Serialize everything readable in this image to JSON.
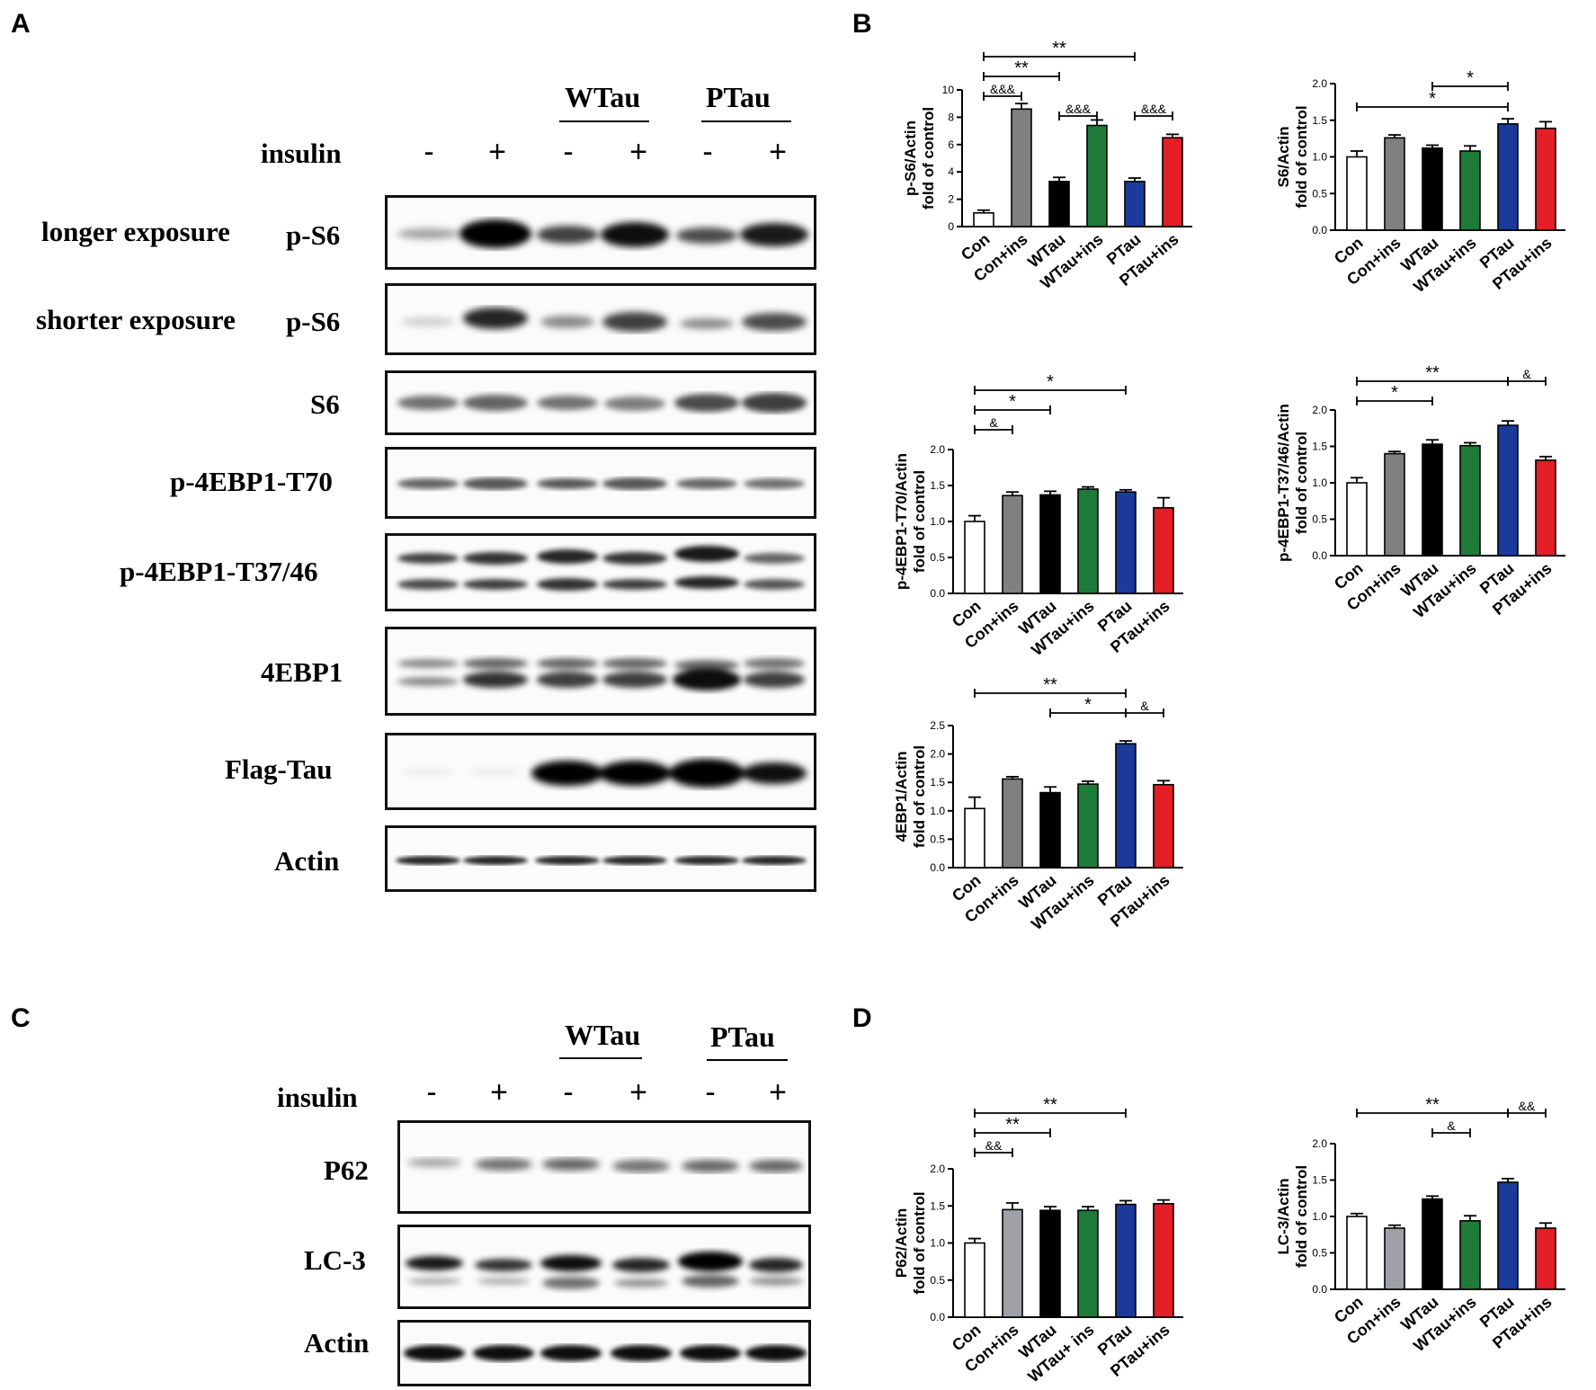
{
  "panels": {
    "A": "A",
    "B": "B",
    "C": "C",
    "D": "D"
  },
  "blotA": {
    "groups": [
      "WTau",
      "PTau"
    ],
    "insulin_label": "insulin",
    "insulin_signs": [
      "-",
      "+",
      "-",
      "+",
      "-",
      "+"
    ],
    "rows": [
      {
        "label1": "longer exposure",
        "label2": "p-S6"
      },
      {
        "label1": "shorter exposure",
        "label2": "p-S6"
      },
      {
        "label2": "S6"
      },
      {
        "label2": "p-4EBP1-T70"
      },
      {
        "label2": "p-4EBP1-T37/46"
      },
      {
        "label2": "4EBP1"
      },
      {
        "label2": "Flag-Tau"
      },
      {
        "label2": "Actin"
      }
    ]
  },
  "blotC": {
    "groups": [
      "WTau",
      "PTau"
    ],
    "insulin_label": "insulin",
    "insulin_signs": [
      "-",
      "+",
      "-",
      "+",
      "-",
      "+"
    ],
    "rows": [
      {
        "label2": "P62"
      },
      {
        "label2": "LC-3"
      },
      {
        "label2": "Actin"
      }
    ]
  },
  "colors": {
    "con": "#ffffff",
    "con_ins": "#808080",
    "wtau": "#000000",
    "wtau_ins": "#1e7b3a",
    "ptau": "#1a3a9c",
    "ptau_ins": "#e41e26",
    "con_ins_d": "#a0a0a8"
  },
  "chart_data": [
    {
      "type": "bar",
      "panel": "B",
      "ylabel": [
        "p-S6/Actin",
        "fold of control"
      ],
      "categories": [
        "Con",
        "Con+ins",
        "WTau",
        "WTau+ins",
        "PTau",
        "PTau+ins"
      ],
      "values": [
        1.0,
        8.6,
        3.3,
        7.4,
        3.3,
        6.5
      ],
      "errors": [
        0.2,
        0.4,
        0.3,
        0.4,
        0.25,
        0.25
      ],
      "ylim": [
        0,
        10
      ],
      "yticks": [
        "0",
        "2",
        "4",
        "6",
        "8",
        "10"
      ],
      "colors": [
        "#ffffff",
        "#808080",
        "#000000",
        "#1e7b3a",
        "#1a3a9c",
        "#e41e26"
      ],
      "annotations": [
        {
          "from": 0,
          "to": 4,
          "text": "**",
          "level": 0
        },
        {
          "from": 0,
          "to": 2,
          "text": "**",
          "level": 1
        },
        {
          "from": 0,
          "to": 1,
          "text": "&&&",
          "level": 2,
          "ticks": true
        },
        {
          "from": 2,
          "to": 3,
          "text": "&&&",
          "level": 3,
          "ticks": true
        },
        {
          "from": 4,
          "to": 5,
          "text": "&&&",
          "level": 3,
          "ticks": true
        }
      ]
    },
    {
      "type": "bar",
      "panel": "B",
      "ylabel": [
        "S6/Actin",
        "fold of control"
      ],
      "categories": [
        "Con",
        "Con+ins",
        "WTau",
        "WTau+ins",
        "PTau",
        "PTau+ins"
      ],
      "values": [
        1.0,
        1.26,
        1.12,
        1.08,
        1.45,
        1.39
      ],
      "errors": [
        0.08,
        0.04,
        0.04,
        0.07,
        0.07,
        0.09
      ],
      "ylim": [
        0,
        2.0
      ],
      "yticks": [
        "0.0",
        "0.5",
        "1.0",
        "1.5",
        "2.0"
      ],
      "colors": [
        "#ffffff",
        "#808080",
        "#000000",
        "#1e7b3a",
        "#1a3a9c",
        "#e41e26"
      ],
      "annotations": [
        {
          "from": 2,
          "to": 4,
          "text": "*",
          "level": 0,
          "ticks": true
        },
        {
          "from": 0,
          "to": 4,
          "text": "*",
          "level": 1,
          "ticks": true
        }
      ]
    },
    {
      "type": "bar",
      "panel": "B",
      "ylabel": [
        "p-4EBP1-T70/Actin",
        "fold of control"
      ],
      "categories": [
        "Con",
        "Con+ins",
        "WTau",
        "WTau+ins",
        "PTau",
        "PTau+ins"
      ],
      "values": [
        1.0,
        1.36,
        1.37,
        1.45,
        1.41,
        1.19
      ],
      "errors": [
        0.08,
        0.05,
        0.05,
        0.03,
        0.03,
        0.14
      ],
      "ylim": [
        0,
        2.0
      ],
      "yticks": [
        "0.0",
        "0.5",
        "1.0",
        "1.5",
        "2.0"
      ],
      "colors": [
        "#ffffff",
        "#808080",
        "#000000",
        "#1e7b3a",
        "#1a3a9c",
        "#e41e26"
      ],
      "annotations": [
        {
          "from": 0,
          "to": 4,
          "text": "*",
          "level": 0,
          "ticks": true
        },
        {
          "from": 0,
          "to": 2,
          "text": "*",
          "level": 1,
          "ticks": true
        },
        {
          "from": 0,
          "to": 1,
          "text": "&",
          "level": 2,
          "ticks": true
        }
      ]
    },
    {
      "type": "bar",
      "panel": "B",
      "ylabel": [
        "p-4EBP1-T37/46/Actin",
        "fold of control"
      ],
      "categories": [
        "Con",
        "Con+ins",
        "WTau",
        "WTau+ins",
        "PTau",
        "PTau+ins"
      ],
      "values": [
        1.0,
        1.4,
        1.53,
        1.51,
        1.79,
        1.31
      ],
      "errors": [
        0.07,
        0.03,
        0.06,
        0.04,
        0.06,
        0.05
      ],
      "ylim": [
        0,
        2.0
      ],
      "yticks": [
        "0.0",
        "0.5",
        "1.0",
        "1.5",
        "2.0"
      ],
      "colors": [
        "#ffffff",
        "#808080",
        "#000000",
        "#1e7b3a",
        "#1a3a9c",
        "#e41e26"
      ],
      "annotations": [
        {
          "from": 0,
          "to": 4,
          "text": "**",
          "level": 0,
          "ticks": true
        },
        {
          "from": 4,
          "to": 5,
          "text": "&",
          "level": 0,
          "ticks": true
        },
        {
          "from": 0,
          "to": 2,
          "text": "*",
          "level": 1,
          "ticks": true
        }
      ]
    },
    {
      "type": "bar",
      "panel": "B",
      "ylabel": [
        "4EBP1/Actin",
        "fold of control"
      ],
      "categories": [
        "Con",
        "Con+ins",
        "WTau",
        "WTau+ins",
        "PTau",
        "PTau+ins"
      ],
      "values": [
        1.04,
        1.56,
        1.32,
        1.47,
        2.18,
        1.46
      ],
      "errors": [
        0.2,
        0.04,
        0.1,
        0.05,
        0.05,
        0.07
      ],
      "ylim": [
        0,
        2.5
      ],
      "yticks": [
        "0.0",
        "0.5",
        "1.0",
        "1.5",
        "2.0",
        "2.5"
      ],
      "colors": [
        "#ffffff",
        "#808080",
        "#000000",
        "#1e7b3a",
        "#1a3a9c",
        "#e41e26"
      ],
      "annotations": [
        {
          "from": 0,
          "to": 4,
          "text": "**",
          "level": 0,
          "ticks": true
        },
        {
          "from": 2,
          "to": 4,
          "text": "*",
          "level": 1,
          "ticks": true
        },
        {
          "from": 4,
          "to": 5,
          "text": "&",
          "level": 1,
          "ticks": true
        }
      ]
    },
    {
      "type": "bar",
      "panel": "D",
      "ylabel": [
        "P62/Actin",
        "fold of control"
      ],
      "categories": [
        "Con",
        "Con+ins",
        "WTau",
        "WTau+ ins",
        "PTau",
        "PTau+ins"
      ],
      "values": [
        1.0,
        1.45,
        1.44,
        1.44,
        1.52,
        1.53
      ],
      "errors": [
        0.06,
        0.09,
        0.05,
        0.05,
        0.05,
        0.05
      ],
      "ylim": [
        0,
        2.0
      ],
      "yticks": [
        "0.0",
        "0.5",
        "1.0",
        "1.5",
        "2.0"
      ],
      "colors": [
        "#ffffff",
        "#a0a0a8",
        "#000000",
        "#1e7b3a",
        "#1a3a9c",
        "#e41e26"
      ],
      "annotations": [
        {
          "from": 0,
          "to": 4,
          "text": "**",
          "level": 0,
          "ticks": true
        },
        {
          "from": 0,
          "to": 2,
          "text": "**",
          "level": 1,
          "ticks": true
        },
        {
          "from": 0,
          "to": 1,
          "text": "&&",
          "level": 2,
          "ticks": true
        }
      ]
    },
    {
      "type": "bar",
      "panel": "D",
      "ylabel": [
        "LC-3/Actin",
        "fold of control"
      ],
      "categories": [
        "Con",
        "Con+ins",
        "WTau",
        "WTau+ins",
        "PTau",
        "PTau+ins"
      ],
      "values": [
        1.0,
        0.84,
        1.24,
        0.94,
        1.47,
        0.84
      ],
      "errors": [
        0.04,
        0.04,
        0.04,
        0.07,
        0.05,
        0.07
      ],
      "ylim": [
        0,
        2.0
      ],
      "yticks": [
        "0.0",
        "0.5",
        "1.0",
        "1.5",
        "2.0"
      ],
      "colors": [
        "#ffffff",
        "#a0a0a8",
        "#000000",
        "#1e7b3a",
        "#1a3a9c",
        "#e41e26"
      ],
      "annotations": [
        {
          "from": 0,
          "to": 4,
          "text": "**",
          "level": 0,
          "ticks": true
        },
        {
          "from": 4,
          "to": 5,
          "text": "&&",
          "level": 0,
          "ticks": true
        },
        {
          "from": 2,
          "to": 3,
          "text": "&",
          "level": 1,
          "ticks": true
        }
      ]
    }
  ]
}
